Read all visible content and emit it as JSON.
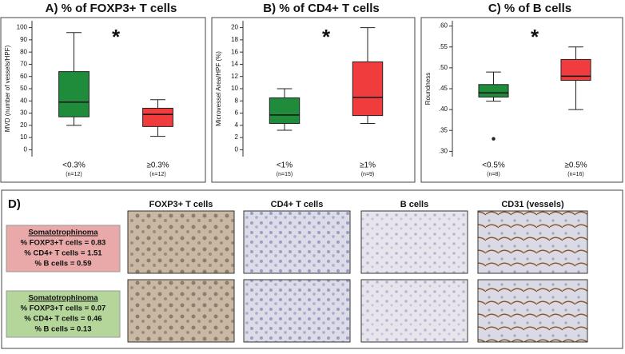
{
  "chart_data": [
    {
      "type": "box",
      "title": "A) % of FOXP3+ T cells",
      "y_label": "MVD (number of vessels/HPF)",
      "annotation": "*",
      "categories": [
        "<0.3%",
        "≥0.3%"
      ],
      "category_notes": [
        "(n=12)",
        "(n=12)"
      ],
      "boxes": [
        {
          "color": "#1e8c3a",
          "min": 20,
          "q1": 27,
          "median": 39,
          "q3": 64,
          "max": 96,
          "outliers": []
        },
        {
          "color": "#f03c3c",
          "min": 11,
          "q1": 19,
          "median": 29,
          "q3": 34,
          "max": 41,
          "outliers": []
        }
      ],
      "ylim": [
        -3,
        103
      ],
      "yticks": [
        0,
        10,
        20,
        30,
        40,
        50,
        60,
        70,
        80,
        90,
        100
      ],
      "grid": false
    },
    {
      "type": "box",
      "title": "B) % of CD4+ T cells",
      "y_label": "Microvessel Area/HPF (%)",
      "annotation": "*",
      "categories": [
        "<1%",
        "≥1%"
      ],
      "category_notes": [
        "(n=15)",
        "(n=9)"
      ],
      "boxes": [
        {
          "color": "#1e8c3a",
          "min": 3.2,
          "q1": 4.3,
          "median": 5.7,
          "q3": 8.5,
          "max": 10,
          "outliers": []
        },
        {
          "color": "#f03c3c",
          "min": 4.3,
          "q1": 5.6,
          "median": 8.6,
          "q3": 14.4,
          "max": 20,
          "outliers": []
        }
      ],
      "ylim": [
        -0.6,
        20.6
      ],
      "yticks": [
        0,
        2,
        4,
        6,
        8,
        10,
        12,
        14,
        16,
        18,
        20
      ],
      "grid": false
    },
    {
      "type": "box",
      "title": "C) % of B cells",
      "y_label": "Roundness",
      "annotation": "*",
      "categories": [
        "<0.5%",
        "≥0.5%"
      ],
      "category_notes": [
        "(n=8)",
        "(n=16)"
      ],
      "boxes": [
        {
          "color": "#1e8c3a",
          "min": 0.42,
          "q1": 0.43,
          "median": 0.44,
          "q3": 0.46,
          "max": 0.49,
          "outliers": [
            0.33
          ]
        },
        {
          "color": "#f03c3c",
          "min": 0.4,
          "q1": 0.47,
          "median": 0.48,
          "q3": 0.52,
          "max": 0.55,
          "outliers": []
        }
      ],
      "ylim": [
        0.295,
        0.605
      ],
      "yticks": [
        {
          "value": 0.3,
          "label": ".30"
        },
        {
          "value": 0.35,
          "label": ".35"
        },
        {
          "value": 0.4,
          "label": ".40"
        },
        {
          "value": 0.45,
          "label": ".45"
        },
        {
          "value": 0.5,
          "label": ".50"
        },
        {
          "value": 0.55,
          "label": ".55"
        },
        {
          "value": 0.6,
          "label": ".60"
        }
      ],
      "grid": false
    }
  ],
  "panel_d": {
    "label": "D)",
    "columns": [
      "FOXP3+ T cells",
      "CD4+ T cells",
      "B cells",
      "CD31 (vessels)"
    ],
    "rows": [
      {
        "title": "Somatotrophinoma",
        "lines": [
          "% FOXP3+T cells = 0.83",
          "% CD4+ T cells = 1.51",
          "% B cells = 0.59"
        ]
      },
      {
        "title": "Somatotrophinoma",
        "lines": [
          "% FOXP3+T cells = 0.07",
          "% CD4+ T cells = 0.46",
          "% B cells = 0.13"
        ]
      }
    ]
  }
}
